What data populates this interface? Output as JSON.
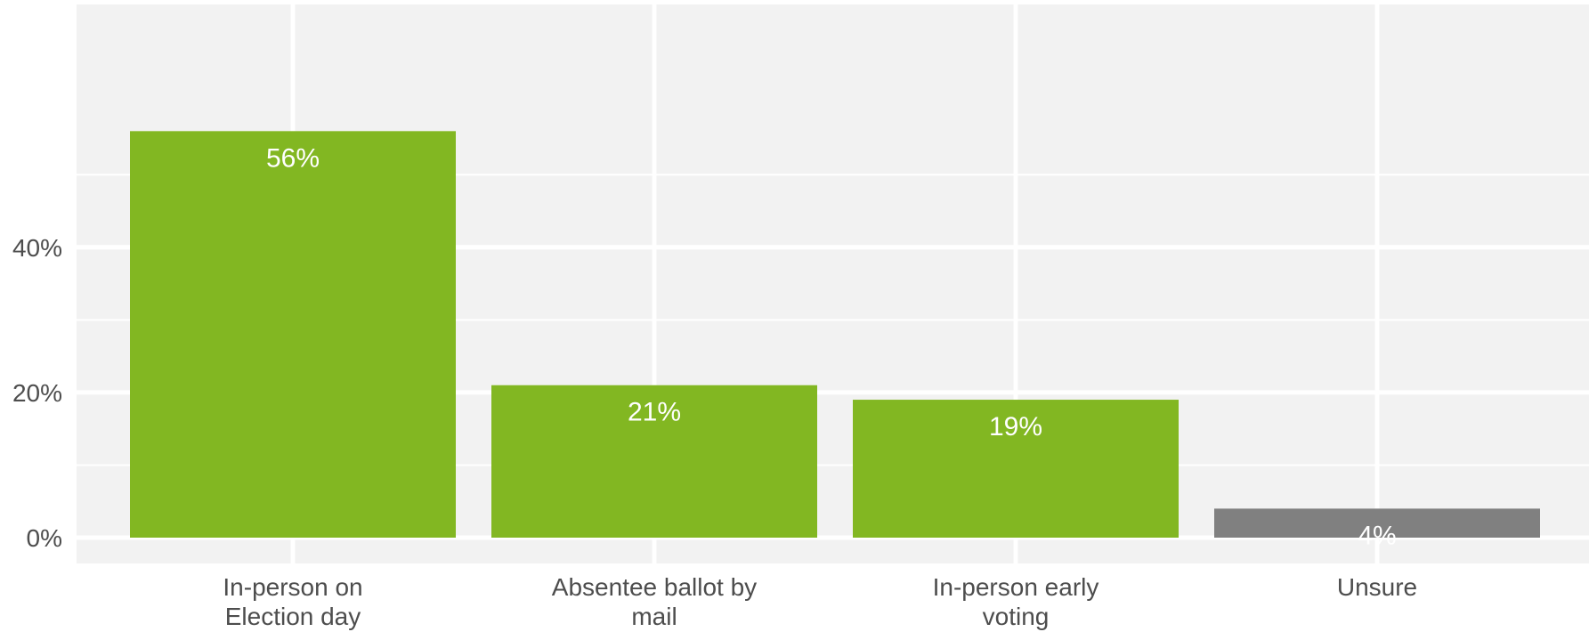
{
  "chart_data": {
    "type": "bar",
    "categories": [
      [
        "In-person on",
        "Election day"
      ],
      [
        "Absentee ballot by",
        "mail"
      ],
      [
        "In-person early",
        "voting"
      ],
      [
        "Unsure"
      ]
    ],
    "values": [
      56,
      21,
      19,
      4
    ],
    "data_labels": [
      "56%",
      "21%",
      "19%",
      "4%"
    ],
    "bar_colors": [
      "#82b722",
      "#82b722",
      "#82b722",
      "#808080"
    ],
    "title": "",
    "xlabel": "",
    "ylabel": "",
    "ylim": [
      0,
      60
    ],
    "y_ticks": [
      {
        "value": 0,
        "label": "0%"
      },
      {
        "value": 20,
        "label": "20%"
      },
      {
        "value": 40,
        "label": "40%"
      }
    ],
    "y_minor_ticks": [
      10,
      30,
      50
    ],
    "grid": true,
    "legend": "none",
    "colors": {
      "panel_background": "#f2f2f2",
      "grid": "#ffffff",
      "text": "#4d4d4d",
      "data_label": "#ffffff"
    }
  }
}
